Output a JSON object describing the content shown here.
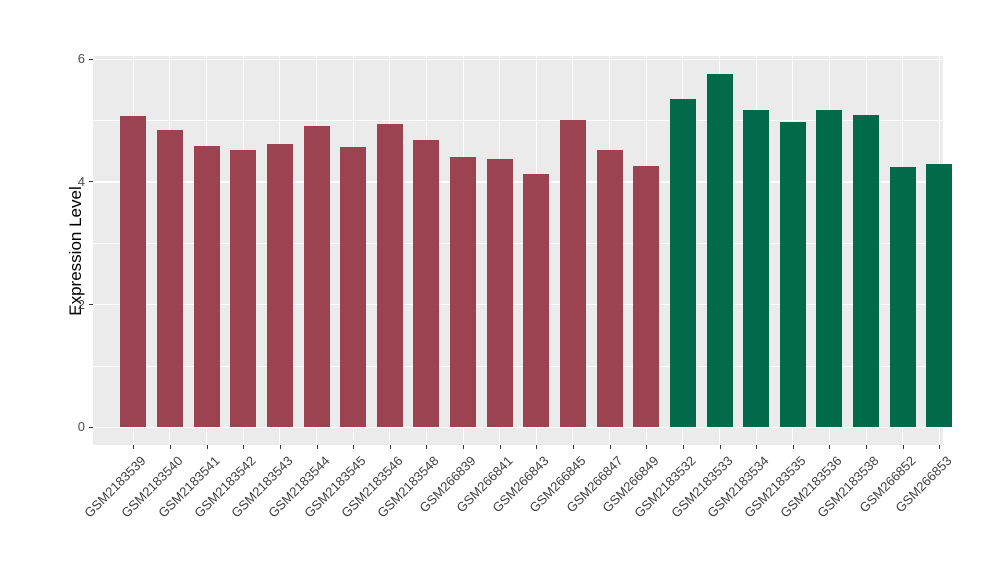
{
  "chart_data": {
    "type": "bar",
    "title": "",
    "xlabel": "",
    "ylabel": "Expression Level",
    "ylim": [
      0,
      6.05
    ],
    "yticks": [
      0,
      2,
      4,
      6
    ],
    "yticks_minor": [
      1,
      3,
      5
    ],
    "grid": "on",
    "legend_position": "none",
    "categories": [
      "GSM2183539",
      "GSM2183540",
      "GSM2183541",
      "GSM2183542",
      "GSM2183543",
      "GSM2183544",
      "GSM2183545",
      "GSM2183546",
      "GSM2183548",
      "GSM266839",
      "GSM266841",
      "GSM266843",
      "GSM266845",
      "GSM266847",
      "GSM266849",
      "GSM2183532",
      "GSM2183533",
      "GSM2183534",
      "GSM2183535",
      "GSM2183536",
      "GSM2183538",
      "GSM266852",
      "GSM266853"
    ],
    "values": [
      5.07,
      4.85,
      4.58,
      4.52,
      4.62,
      4.91,
      4.57,
      4.94,
      4.68,
      4.41,
      4.37,
      4.13,
      5.01,
      4.52,
      4.26,
      5.35,
      5.76,
      5.17,
      4.98,
      5.17,
      5.09,
      4.24,
      4.3
    ],
    "groups": [
      "red",
      "red",
      "red",
      "red",
      "red",
      "red",
      "red",
      "red",
      "red",
      "red",
      "red",
      "red",
      "red",
      "red",
      "red",
      "green",
      "green",
      "green",
      "green",
      "green",
      "green",
      "green",
      "green"
    ]
  },
  "style": {
    "panel_bg": "#EBEBEB",
    "grid_color": "#FFFFFF",
    "bar_color_red": "#9C4351",
    "bar_color_green": "#016A49",
    "axis_text_color": "#4D4D4D",
    "axis_title_color": "#000000",
    "tick_color": "#333333"
  }
}
